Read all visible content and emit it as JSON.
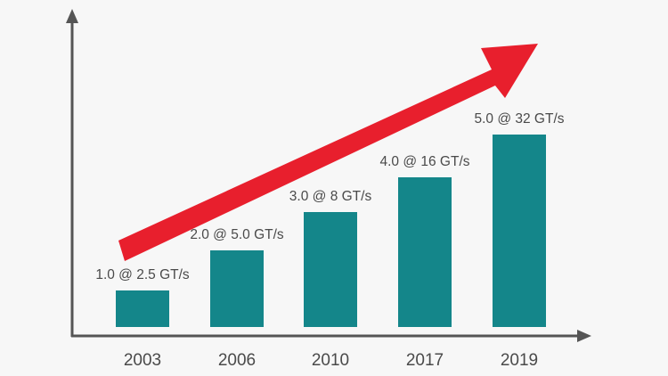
{
  "chart_data": {
    "type": "bar",
    "categories": [
      "2003",
      "2006",
      "2010",
      "2017",
      "2019"
    ],
    "values": [
      2.5,
      5.0,
      8,
      16,
      32
    ],
    "data_labels": [
      "1.0 @ 2.5 GT/s",
      "2.0 @ 5.0 GT/s",
      "3.0 @ 8 GT/s",
      "4.0 @ 16 GT/s",
      "5.0 @ 32 GT/s"
    ],
    "title": "",
    "xlabel": "",
    "ylabel": "",
    "grid": false,
    "trend_arrow": true,
    "colors": {
      "bar": "#14868a",
      "arrow": "#e81f2d",
      "axis": "#555555",
      "text": "#4a4a4a",
      "background": "#f7f7f7"
    }
  }
}
